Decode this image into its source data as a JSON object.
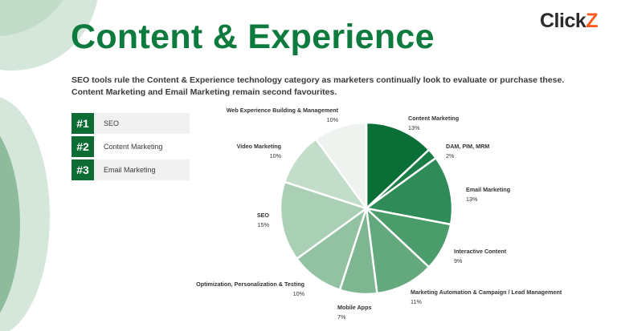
{
  "page": {
    "title": "Content & Experience",
    "logo": {
      "part1": "Click",
      "part2": "Z"
    },
    "subtitle_line1": "SEO tools rule the Content & Experience technology category as marketers continually look to evaluate or purchase these.",
    "subtitle_line2": "Content Marketing and Email Marketing remain second favourites."
  },
  "rankings": [
    {
      "rank": "#1",
      "label": "SEO"
    },
    {
      "rank": "#2",
      "label": "Content Marketing"
    },
    {
      "rank": "#3",
      "label": "Email Marketing"
    }
  ],
  "colors": {
    "title": "#0d7a3e",
    "badge": "#0d6b34",
    "logo_accent": "#ff5a1e"
  },
  "chart_data": {
    "type": "pie",
    "categories": [
      "Content Marketing",
      "DAM, PIM, MRM",
      "Email Marketing",
      "Interactive Content",
      "Marketing Automation & Campaign / Lead Management",
      "Mobile Apps",
      "Optimization, Personalization & Testing",
      "SEO",
      "Video Marketing",
      "Web Experience Building & Management"
    ],
    "values": [
      13,
      2,
      13,
      9,
      11,
      7,
      10,
      15,
      10,
      10
    ],
    "value_labels": [
      "13%",
      "2%",
      "13%",
      "9%",
      "11%",
      "7%",
      "10%",
      "15%",
      "10%",
      "10%"
    ],
    "colors": [
      "#0a6e37",
      "#1a7d45",
      "#2f8c58",
      "#4a9c6b",
      "#64a97d",
      "#7db690",
      "#93c2a2",
      "#a9cfb4",
      "#c2ddca",
      "#eef3ef"
    ]
  }
}
